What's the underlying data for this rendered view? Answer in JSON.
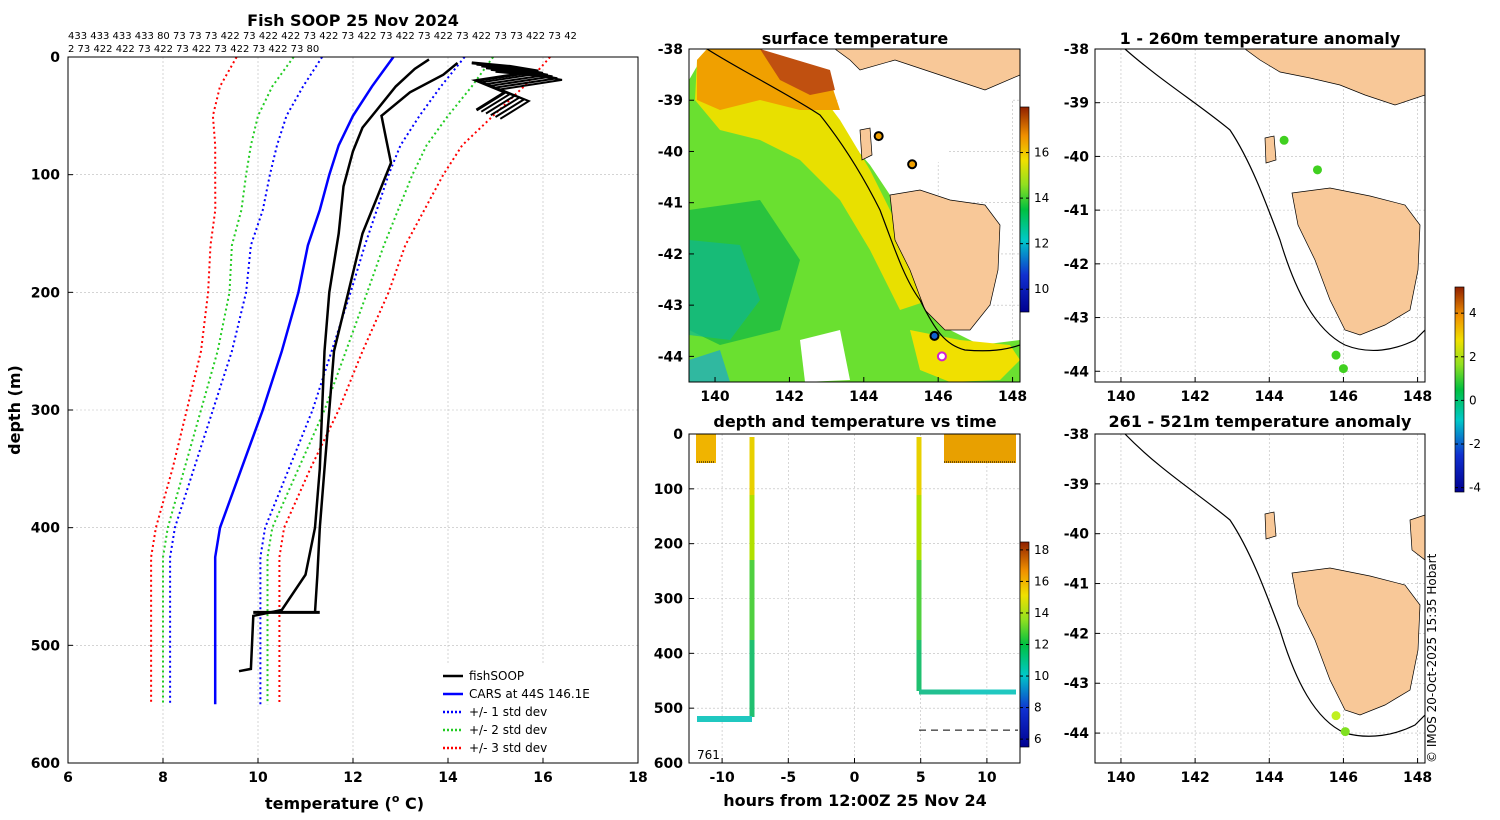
{
  "header": {
    "title": "Fish SOOP 25 Nov 2024",
    "codes_line1": "433 433 433 433 80 73 73 73 422 73 422 422 73 422 73 422 73 422 73 422 73 422 73 73 422 73 42",
    "codes_line2": "2 73 422 422 73 422 73 422 73 422 73 422 73 80"
  },
  "credit": "© IMOS 20-Oct-2025 15:35 Hobart",
  "chart_data": [
    {
      "type": "line",
      "title": "Fish SOOP 25 Nov 2024",
      "xlabel": "temperature (",
      "xlabel_sup": "o",
      "xlabel_end": " C)",
      "ylabel": "depth (m)",
      "xlim": [
        6,
        18
      ],
      "ylim": [
        600,
        0
      ],
      "xticks": [
        "6",
        "8",
        "10",
        "12",
        "14",
        "16",
        "18"
      ],
      "yticks": [
        "0",
        "100",
        "200",
        "300",
        "400",
        "500",
        "600"
      ],
      "legend": {
        "position": "bottom-right",
        "entries": [
          "fishSOOP",
          "CARS at 44S 146.1E",
          "+/- 1 std dev",
          "+/- 2 std dev",
          "+/- 3 std dev"
        ]
      },
      "colors": {
        "fishsoop": "#000000",
        "mean": "#0000ff",
        "sd1": "#0000ff",
        "sd2": "#22cc22",
        "sd3": "#ff0000"
      },
      "depths": [
        0,
        25,
        50,
        75,
        100,
        130,
        160,
        200,
        250,
        300,
        350,
        400,
        425,
        475,
        550
      ],
      "cars_mean": [
        12.85,
        12.4,
        12.0,
        11.7,
        11.5,
        11.3,
        11.05,
        10.85,
        10.5,
        10.1,
        9.65,
        9.2,
        9.1,
        9.1,
        9.1
      ],
      "sd_offsets": [
        1.5,
        1.45,
        1.4,
        1.3,
        1.25,
        1.2,
        1.2,
        1.1,
        1.05,
        1.05,
        1.0,
        0.95,
        0.95,
        0.95,
        0.95
      ],
      "sd_rel_2": [
        2.1,
        2.1,
        2.0,
        1.85,
        1.75,
        1.65,
        1.6,
        1.45,
        1.35,
        1.3,
        1.2,
        1.1,
        1.1,
        1.1,
        1.1
      ],
      "sd_rel_3": [
        3.3,
        3.2,
        2.95,
        2.6,
        2.4,
        2.2,
        2.05,
        1.9,
        1.7,
        1.6,
        1.45,
        1.35,
        1.35,
        1.35,
        1.35
      ],
      "series": [
        {
          "name": "fishSOOP cast 1",
          "points": [
            [
              13.6,
              2
            ],
            [
              13.3,
              10
            ],
            [
              12.9,
              25
            ],
            [
              12.5,
              45
            ],
            [
              12.2,
              60
            ],
            [
              12.0,
              80
            ],
            [
              11.8,
              110
            ],
            [
              11.7,
              150
            ],
            [
              11.5,
              200
            ],
            [
              11.4,
              250
            ],
            [
              11.35,
              300
            ],
            [
              11.3,
              350
            ],
            [
              11.2,
              400
            ],
            [
              11.0,
              440
            ],
            [
              10.5,
              470
            ],
            [
              9.9,
              475
            ],
            [
              9.85,
              520
            ],
            [
              9.6,
              522
            ]
          ]
        },
        {
          "name": "fishSOOP cast 2",
          "points": [
            [
              14.2,
              5
            ],
            [
              13.9,
              15
            ],
            [
              13.2,
              30
            ],
            [
              12.6,
              50
            ],
            [
              12.7,
              70
            ],
            [
              12.8,
              90
            ],
            [
              12.5,
              120
            ],
            [
              12.2,
              150
            ],
            [
              11.9,
              200
            ],
            [
              11.6,
              250
            ],
            [
              11.5,
              300
            ],
            [
              11.4,
              350
            ],
            [
              11.3,
              400
            ],
            [
              11.25,
              440
            ],
            [
              11.2,
              472
            ]
          ]
        },
        {
          "name": "fishSOOP surface",
          "points": [
            [
              14.5,
              5
            ],
            [
              15.3,
              8
            ],
            [
              15.9,
              12
            ],
            [
              14.6,
              20
            ],
            [
              15.2,
              30
            ],
            [
              14.6,
              45
            ]
          ]
        }
      ]
    },
    {
      "type": "heatmap",
      "title": "surface temperature",
      "xlim": [
        139.3,
        148.2
      ],
      "ylim": [
        -44.5,
        -38
      ],
      "xticks": [
        "140",
        "142",
        "144",
        "146",
        "148"
      ],
      "yticks": [
        "-38",
        "-39",
        "-40",
        "-41",
        "-42",
        "-43",
        "-44"
      ],
      "colorbar": {
        "range": [
          9,
          18
        ],
        "ticks": [
          "10",
          "12",
          "14",
          "16"
        ]
      },
      "stations": [
        {
          "lon": 144.4,
          "lat": -39.7
        },
        {
          "lon": 145.3,
          "lat": -40.25
        },
        {
          "lon": 145.9,
          "lat": -43.6
        },
        {
          "lon": 146.1,
          "lat": -44.0
        }
      ]
    },
    {
      "type": "scatter",
      "title": "depth and temperature vs time",
      "xlabel": "hours from 12:00Z 25 Nov 24",
      "xlim": [
        -12.5,
        12.5
      ],
      "ylim": [
        600,
        0
      ],
      "xticks": [
        "-10",
        "-5",
        "0",
        "5",
        "10"
      ],
      "yticks": [
        "0",
        "100",
        "200",
        "300",
        "400",
        "500",
        "600"
      ],
      "colorbar": {
        "range": [
          5.5,
          18.5
        ],
        "ticks": [
          "6",
          "8",
          "10",
          "12",
          "14",
          "16",
          "18"
        ]
      },
      "annotation": "761",
      "reference_depth": 540
    },
    {
      "type": "scatter",
      "title": "1 - 260m temperature anomaly",
      "xlim": [
        139.3,
        148.2
      ],
      "ylim": [
        -44.2,
        -38
      ],
      "xticks": [
        "140",
        "142",
        "144",
        "146",
        "148"
      ],
      "yticks": [
        "-38",
        "-39",
        "-40",
        "-41",
        "-42",
        "-43",
        "-44"
      ],
      "points": [
        {
          "lon": 144.4,
          "lat": -39.7
        },
        {
          "lon": 145.3,
          "lat": -40.25
        },
        {
          "lon": 145.8,
          "lat": -43.7
        },
        {
          "lon": 146.0,
          "lat": -43.95
        }
      ]
    },
    {
      "type": "scatter",
      "title": "261 - 521m temperature anomaly",
      "xlim": [
        139.3,
        148.2
      ],
      "ylim": [
        -44.6,
        -38
      ],
      "xticks": [
        "140",
        "142",
        "144",
        "146",
        "148"
      ],
      "yticks": [
        "-38",
        "-39",
        "-40",
        "-41",
        "-42",
        "-43",
        "-44"
      ],
      "points": [
        {
          "lon": 145.8,
          "lat": -43.65
        },
        {
          "lon": 146.05,
          "lat": -43.97
        }
      ],
      "colorbar": {
        "range": [
          -4.2,
          5.2
        ],
        "ticks": [
          "-4",
          "-2",
          "0",
          "2",
          "4"
        ]
      }
    }
  ]
}
